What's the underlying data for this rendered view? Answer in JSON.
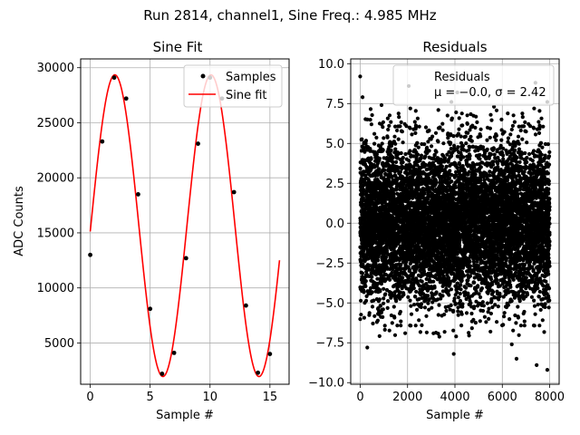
{
  "figure": {
    "suptitle": "Run 2814, channel1, Sine Freq.: 4.985 MHz"
  },
  "chart_data": [
    {
      "type": "line",
      "title": "Sine Fit",
      "xlabel": "Sample #",
      "ylabel": "ADC Counts",
      "xlim": [
        -0.8,
        16.6
      ],
      "ylim": [
        1250,
        30800
      ],
      "xticks": [
        0,
        5,
        10,
        15
      ],
      "yticks": [
        5000,
        10000,
        15000,
        20000,
        25000,
        30000
      ],
      "grid": true,
      "legend": {
        "placement": "upper-right",
        "entries": [
          "Samples",
          "Sine fit"
        ]
      },
      "series": [
        {
          "name": "Samples",
          "kind": "scatter",
          "color": "#000000",
          "x": [
            0,
            1,
            2,
            3,
            4,
            5,
            6,
            7,
            8,
            9,
            10,
            11,
            12,
            13,
            14,
            15
          ],
          "y": [
            13000,
            23300,
            29100,
            27200,
            18500,
            8100,
            2200,
            4100,
            12700,
            23100,
            29100,
            27200,
            18700,
            8400,
            2300,
            4000
          ]
        },
        {
          "name": "Sine fit",
          "kind": "line",
          "color": "#ff0000",
          "model": {
            "offset": 15650,
            "amplitude": 13700,
            "period_samples": 8.023,
            "phase": -0.0385
          },
          "x_range": [
            0,
            15.8
          ]
        }
      ]
    },
    {
      "type": "scatter",
      "title": "Residuals",
      "xlabel": "Sample #",
      "ylabel": "",
      "xlim": [
        -400,
        8400
      ],
      "ylim": [
        -10.1,
        10.3
      ],
      "xticks": [
        0,
        2000,
        4000,
        6000,
        8000
      ],
      "yticks": [
        -10.0,
        -7.5,
        -5.0,
        -2.5,
        0.0,
        2.5,
        5.0,
        7.5,
        10.0
      ],
      "ytick_labels": [
        "−10.0",
        "−7.5",
        "−5.0",
        "−2.5",
        "0.0",
        "2.5",
        "5.0",
        "7.5",
        "10.0"
      ],
      "grid": true,
      "legend": {
        "placement": "upper-right",
        "entries": [
          "Residuals",
          "μ = −0.0, σ = 2.42"
        ]
      },
      "series": [
        {
          "name": "Residuals",
          "color": "#000000",
          "mean": -0.0,
          "sigma": 2.42,
          "n_points": 8000,
          "x_range": [
            0,
            7999
          ],
          "notable_points": [
            {
              "x": 0,
              "y": 9.2
            },
            {
              "x": 2050,
              "y": 8.6
            },
            {
              "x": 4100,
              "y": 8.2
            },
            {
              "x": 7400,
              "y": 8.8
            },
            {
              "x": 7900,
              "y": 7.6
            },
            {
              "x": 6600,
              "y": -8.5
            },
            {
              "x": 7450,
              "y": -8.9
            },
            {
              "x": 7900,
              "y": -9.2
            },
            {
              "x": 3950,
              "y": -8.2
            },
            {
              "x": 300,
              "y": -7.8
            },
            {
              "x": 4050,
              "y": -7.1
            },
            {
              "x": 6400,
              "y": -7.6
            },
            {
              "x": 100,
              "y": 7.9
            },
            {
              "x": 900,
              "y": 7.4
            },
            {
              "x": 3850,
              "y": 7.6
            },
            {
              "x": 5650,
              "y": 7.3
            },
            {
              "x": 1900,
              "y": -6.9
            },
            {
              "x": 5500,
              "y": -6.8
            },
            {
              "x": 2600,
              "y": -6.4
            }
          ]
        }
      ]
    }
  ]
}
